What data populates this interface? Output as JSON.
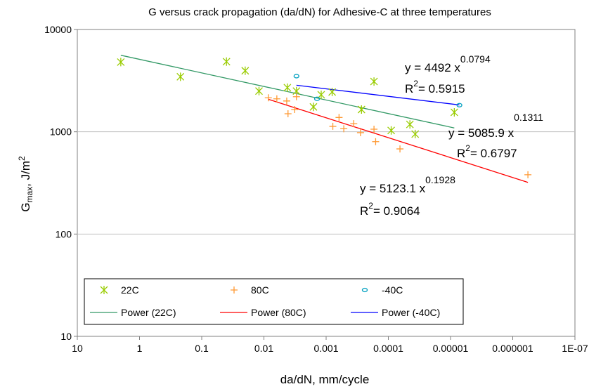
{
  "chart_data": {
    "type": "scatter",
    "title": "G versus crack propagation (da/dN) for  Adhesive-C at three temperatures",
    "xlabel": "da/dN, mm/cycle",
    "ylabel": {
      "base": "G",
      "sub": "max",
      "sep": ", ",
      "unit": "J/m",
      "sup": "2"
    },
    "x_scale": "log",
    "x_reversed": true,
    "y_scale": "log",
    "xlim": [
      10,
      1e-07
    ],
    "ylim": [
      10,
      10000
    ],
    "grid": {
      "y_major": true,
      "x_major": false
    },
    "legend_position": "bottom-left",
    "x_ticks": [
      {
        "value": 10,
        "label": "10"
      },
      {
        "value": 1,
        "label": "1"
      },
      {
        "value": 0.1,
        "label": "0.1"
      },
      {
        "value": 0.01,
        "label": "0.01"
      },
      {
        "value": 0.001,
        "label": "0.001"
      },
      {
        "value": 0.0001,
        "label": "0.0001"
      },
      {
        "value": 1e-05,
        "label": "0.00001"
      },
      {
        "value": 1e-06,
        "label": "0.000001"
      },
      {
        "value": 1e-07,
        "label": "1E-07"
      }
    ],
    "y_ticks": [
      {
        "value": 10,
        "label": "10"
      },
      {
        "value": 100,
        "label": "100"
      },
      {
        "value": 1000,
        "label": "1000"
      },
      {
        "value": 10000,
        "label": "10000"
      }
    ],
    "series": [
      {
        "name": "22C",
        "marker": "asterisk",
        "color": "#99cc00",
        "points": [
          {
            "x": 2.0,
            "y": 4800
          },
          {
            "x": 0.22,
            "y": 3450
          },
          {
            "x": 0.04,
            "y": 4850
          },
          {
            "x": 0.02,
            "y": 3950
          },
          {
            "x": 0.012,
            "y": 2500
          },
          {
            "x": 0.0042,
            "y": 2700
          },
          {
            "x": 0.003,
            "y": 2500
          },
          {
            "x": 0.0016,
            "y": 1750
          },
          {
            "x": 0.0012,
            "y": 2300
          },
          {
            "x": 0.0008,
            "y": 2450
          },
          {
            "x": 0.00027,
            "y": 1650
          },
          {
            "x": 0.00017,
            "y": 3100
          },
          {
            "x": 9e-05,
            "y": 1030
          },
          {
            "x": 4.5e-05,
            "y": 1180
          },
          {
            "x": 3.7e-05,
            "y": 950
          },
          {
            "x": 8.7e-06,
            "y": 1550
          }
        ]
      },
      {
        "name": "80C",
        "marker": "plus",
        "color": "#ff9933",
        "points": [
          {
            "x": 0.0085,
            "y": 2150
          },
          {
            "x": 0.0062,
            "y": 2100
          },
          {
            "x": 0.0043,
            "y": 2000
          },
          {
            "x": 0.0041,
            "y": 1500
          },
          {
            "x": 0.0032,
            "y": 1650
          },
          {
            "x": 0.003,
            "y": 2200
          },
          {
            "x": 0.00078,
            "y": 1130
          },
          {
            "x": 0.00062,
            "y": 1380
          },
          {
            "x": 0.00052,
            "y": 1070
          },
          {
            "x": 0.00036,
            "y": 1200
          },
          {
            "x": 0.00028,
            "y": 980
          },
          {
            "x": 0.00017,
            "y": 1060
          },
          {
            "x": 0.00016,
            "y": 800
          },
          {
            "x": 6.5e-05,
            "y": 680
          },
          {
            "x": 5.7e-07,
            "y": 380
          }
        ]
      },
      {
        "name": "-40C",
        "marker": "circle",
        "color": "#00a0c0",
        "points": [
          {
            "x": 0.003,
            "y": 3500
          },
          {
            "x": 0.0014,
            "y": 2100
          },
          {
            "x": 7.2e-06,
            "y": 1820
          }
        ]
      }
    ],
    "trendlines": [
      {
        "name": "Power (22C)",
        "color": "#339966",
        "x_range": [
          2.0,
          8.7e-06
        ],
        "y_range": [
          5600,
          1090
        ]
      },
      {
        "name": "Power (80C)",
        "color": "#ff0000",
        "x_range": [
          0.0085,
          5.7e-07
        ],
        "y_range": [
          2080,
          320
        ]
      },
      {
        "name": "Power (-40C)",
        "color": "#0000ff",
        "x_range": [
          0.003,
          7.2e-06
        ],
        "y_range": [
          2850,
          1830
        ]
      }
    ],
    "annotations": [
      {
        "eq_base": "y = 4492 x",
        "eq_exp": "0.0794",
        "r2_base": "R",
        "r2_exp": "2",
        "r2_rest": "= 0.5915"
      },
      {
        "eq_base": "y = 5085.9 x",
        "eq_exp": "0.1311",
        "r2_base": "R",
        "r2_exp": "2",
        "r2_rest": "= 0.6797"
      },
      {
        "eq_base": "y = 5123.1 x",
        "eq_exp": "0.1928",
        "r2_base": "R",
        "r2_exp": "2",
        "r2_rest": "= 0.9064"
      }
    ]
  }
}
